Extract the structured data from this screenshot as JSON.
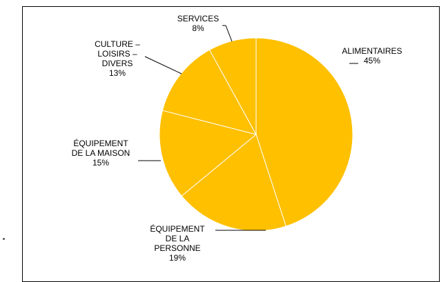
{
  "chart_data": {
    "type": "pie",
    "title": "",
    "slices": [
      {
        "label": [
          "ALIMENTAIRES"
        ],
        "pct_label": "45%",
        "value": 45
      },
      {
        "label": [
          "ÉQUIPEMENT",
          "DE LA",
          "PERSONNE"
        ],
        "pct_label": "19%",
        "value": 19
      },
      {
        "label": [
          "ÉQUIPEMENT",
          "DE LA MAISON"
        ],
        "pct_label": "15%",
        "value": 15
      },
      {
        "label": [
          "CULTURE –",
          "LOISIRS –",
          "DIVERS"
        ],
        "pct_label": "13%",
        "value": 13
      },
      {
        "label": [
          "SERVICES"
        ],
        "pct_label": "8%",
        "value": 8
      }
    ],
    "colors": {
      "slice": "#FFC000",
      "edge": "#FFFFFF",
      "leader": "#000000"
    },
    "legend": "none"
  }
}
